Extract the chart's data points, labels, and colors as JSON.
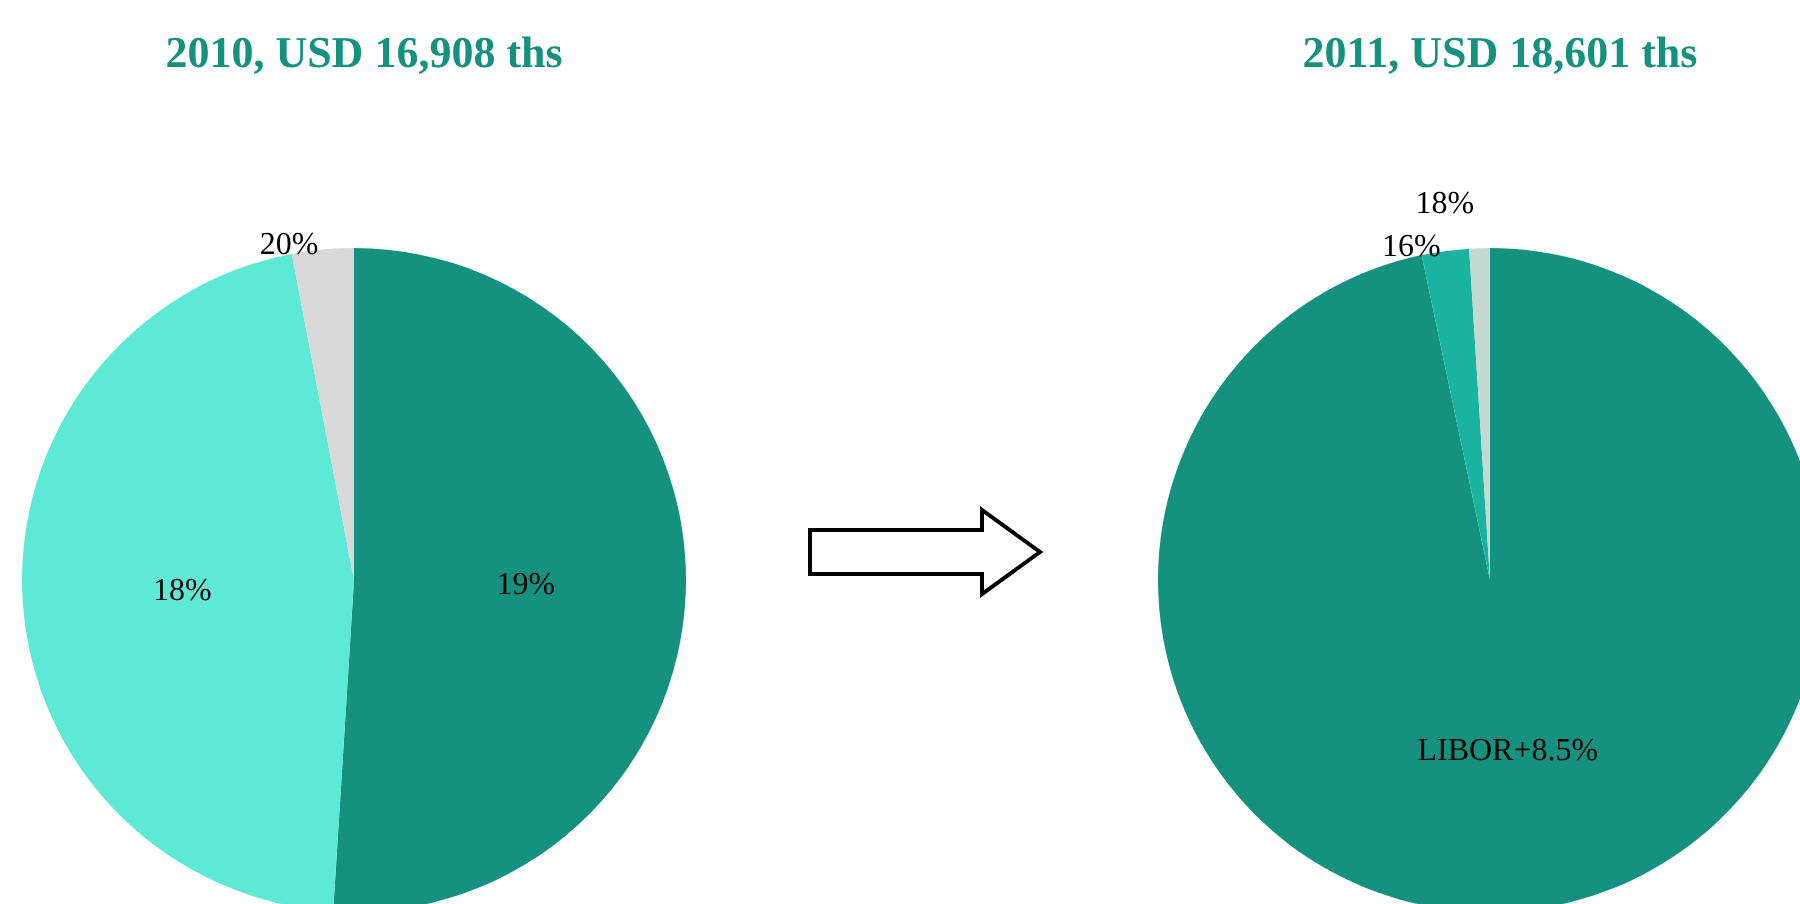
{
  "chart_data": [
    {
      "type": "pie",
      "title": "2010, USD 16,908 ths",
      "categories": [
        "19%",
        "18%",
        "20%"
      ],
      "values": [
        51,
        46,
        3
      ],
      "colors": [
        "#14917f",
        "#5ee8d6",
        "#d9d9d9"
      ],
      "legend": false
    },
    {
      "type": "pie",
      "title": "2011, USD 18,601 ths",
      "categories": [
        "LIBOR+8.5%",
        "16%",
        "18%"
      ],
      "values": [
        96.7,
        2.3,
        1
      ],
      "colors": [
        "#14917f",
        "#1ab3a0",
        "#c5d9d3"
      ],
      "legend": false
    }
  ]
}
